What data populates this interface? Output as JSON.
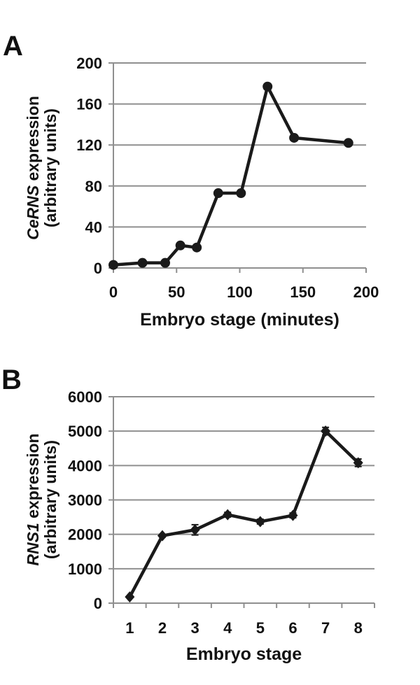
{
  "figure": {
    "background": "#ffffff",
    "text_color": "#111111"
  },
  "panels": [
    {
      "label": "A",
      "y_title_italic": "CeRNS",
      "y_title_rest": " expression",
      "y_title_line2": "(arbitrary units)",
      "x_title": "Embryo stage (minutes)"
    },
    {
      "label": "B",
      "y_title_italic": "RNS1",
      "y_title_rest": " expression",
      "y_title_line2": "(arbitrary units)",
      "x_title": "Embryo stage"
    }
  ],
  "chart_data": [
    {
      "type": "line",
      "panel": "A",
      "title": "",
      "xlabel": "Embryo stage (minutes)",
      "ylabel": "CeRNS expression (arbitrary units)",
      "x": [
        0,
        23,
        41,
        53,
        66,
        83,
        101,
        122,
        143,
        186
      ],
      "y": [
        3,
        5,
        5,
        22,
        20,
        73,
        73,
        177,
        127,
        122
      ],
      "xlim": [
        0,
        200
      ],
      "ylim": [
        0,
        200
      ],
      "xticks": [
        0,
        50,
        100,
        150,
        200
      ],
      "yticks": [
        0,
        40,
        80,
        120,
        160,
        200
      ],
      "marker": "circle",
      "grid": "horizontal",
      "legend": "none",
      "line_color": "#1a1a1a",
      "grid_color": "#8f8f8f"
    },
    {
      "type": "line",
      "panel": "B",
      "title": "",
      "xlabel": "Embryo stage",
      "ylabel": "RNS1 expression (arbitrary units)",
      "categories": [
        "1",
        "2",
        "3",
        "4",
        "5",
        "6",
        "7",
        "8"
      ],
      "y": [
        180,
        1960,
        2130,
        2570,
        2370,
        2550,
        5000,
        4080
      ],
      "yerr": [
        0,
        40,
        150,
        70,
        70,
        70,
        110,
        110
      ],
      "ylim": [
        0,
        6000
      ],
      "yticks": [
        0,
        1000,
        2000,
        3000,
        4000,
        5000,
        6000
      ],
      "marker": "diamond",
      "grid": "horizontal",
      "legend": "none",
      "line_color": "#1a1a1a",
      "grid_color": "#8f8f8f"
    }
  ]
}
